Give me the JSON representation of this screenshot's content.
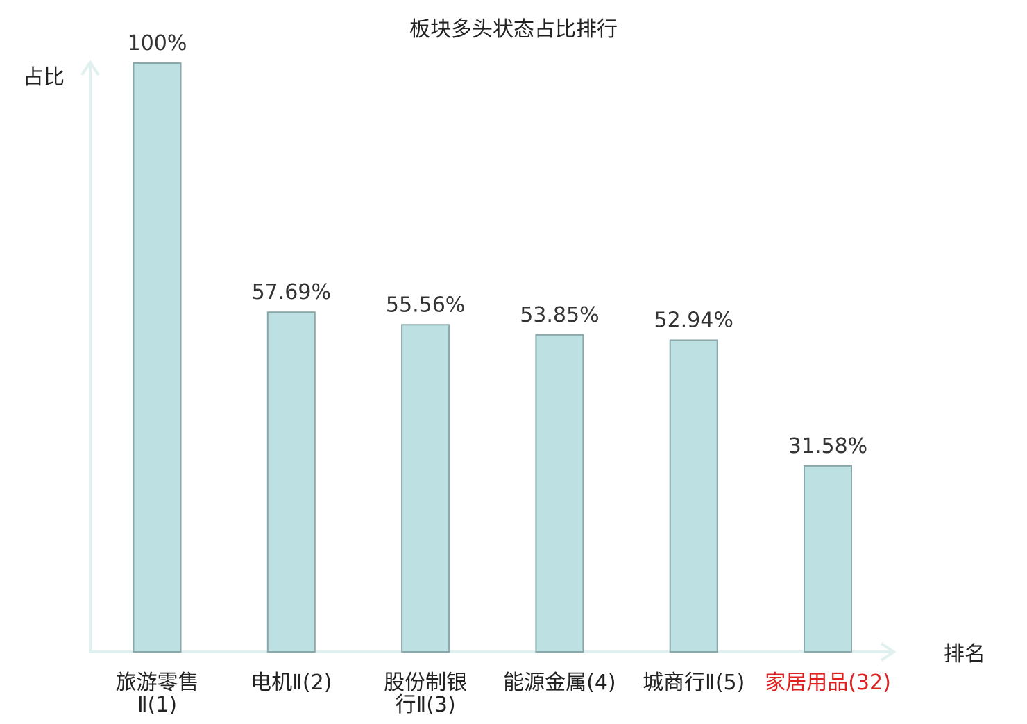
{
  "chart_data": {
    "type": "bar",
    "title": "板块多头状态占比排行",
    "ylabel": "占比",
    "xlabel": "排名",
    "categories": [
      {
        "name_lines": [
          "旅游零售",
          "Ⅱ(1)"
        ],
        "highlight": false
      },
      {
        "name_lines": [
          "电机Ⅱ(2)"
        ],
        "highlight": false
      },
      {
        "name_lines": [
          "股份制银",
          "行Ⅱ(3)"
        ],
        "highlight": false
      },
      {
        "name_lines": [
          "能源金属(4)"
        ],
        "highlight": false
      },
      {
        "name_lines": [
          "城商行Ⅱ(5)"
        ],
        "highlight": false
      },
      {
        "name_lines": [
          "家居用品(32)"
        ],
        "highlight": true
      }
    ],
    "values": [
      100,
      57.69,
      55.56,
      53.85,
      52.94,
      31.58
    ],
    "value_labels": [
      "100%",
      "57.69%",
      "55.56%",
      "53.85%",
      "52.94%",
      "31.58%"
    ],
    "ylim": [
      0,
      100
    ],
    "grid": false,
    "colors": {
      "bar_fill": "#bde0e2",
      "bar_stroke": "#8aa7aa",
      "axis": "#dff0ee",
      "text": "#333333",
      "label_text": "#222222",
      "highlight_text": "#e02020"
    }
  }
}
